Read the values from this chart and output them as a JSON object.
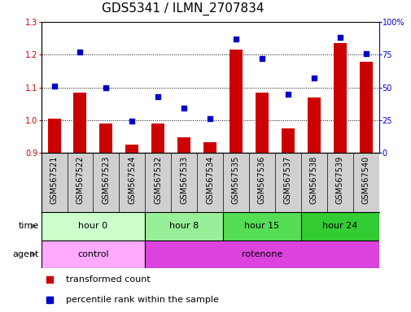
{
  "title": "GDS5341 / ILMN_2707834",
  "samples": [
    "GSM567521",
    "GSM567522",
    "GSM567523",
    "GSM567524",
    "GSM567532",
    "GSM567533",
    "GSM567534",
    "GSM567535",
    "GSM567536",
    "GSM567537",
    "GSM567538",
    "GSM567539",
    "GSM567540"
  ],
  "transformed_count": [
    1.005,
    1.083,
    0.99,
    0.925,
    0.99,
    0.948,
    0.933,
    1.215,
    1.085,
    0.975,
    1.068,
    1.235,
    1.178
  ],
  "percentile_rank": [
    51,
    77,
    50,
    24,
    43,
    34,
    26,
    87,
    72,
    45,
    57,
    88,
    76
  ],
  "ylim_left": [
    0.9,
    1.3
  ],
  "ylim_right": [
    0,
    100
  ],
  "yticks_left": [
    0.9,
    1.0,
    1.1,
    1.2,
    1.3
  ],
  "yticks_right": [
    0,
    25,
    50,
    75,
    100
  ],
  "bar_color": "#cc0000",
  "scatter_color": "#0000cc",
  "bar_baseline": 0.9,
  "time_groups": [
    {
      "label": "hour 0",
      "start": 0,
      "end": 4,
      "color": "#ccffcc"
    },
    {
      "label": "hour 8",
      "start": 4,
      "end": 7,
      "color": "#99ee99"
    },
    {
      "label": "hour 15",
      "start": 7,
      "end": 10,
      "color": "#55dd55"
    },
    {
      "label": "hour 24",
      "start": 10,
      "end": 13,
      "color": "#33cc33"
    }
  ],
  "agent_groups": [
    {
      "label": "control",
      "start": 0,
      "end": 4,
      "color": "#ffaaff"
    },
    {
      "label": "rotenone",
      "start": 4,
      "end": 13,
      "color": "#dd44dd"
    }
  ],
  "legend_red": "transformed count",
  "legend_blue": "percentile rank within the sample",
  "bar_area_bg": "#d8d8d8",
  "sample_box_bg": "#d0d0d0",
  "title_fontsize": 11,
  "tick_fontsize": 7,
  "row_fontsize": 8,
  "legend_fontsize": 8
}
